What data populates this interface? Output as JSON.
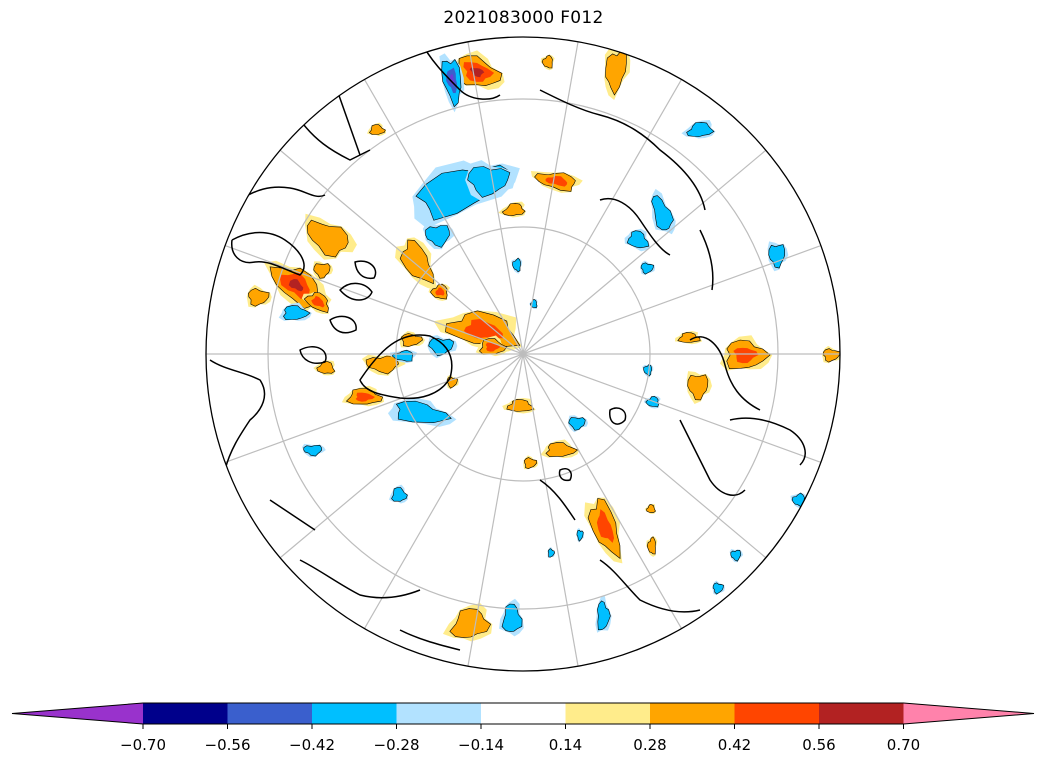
{
  "title": "2021083000 F012",
  "colorbar": {
    "ticks": [
      "−0.70",
      "−0.56",
      "−0.42",
      "−0.28",
      "−0.14",
      "0.14",
      "0.28",
      "0.42",
      "0.56",
      "0.70"
    ],
    "colors": [
      "#9932cc",
      "#00008b",
      "#3a5fcd",
      "#00bfff",
      "#b2e2ff",
      "#ffffff",
      "#ffec8b",
      "#ffa500",
      "#ff4500",
      "#b22222",
      "#ff82ab"
    ],
    "extend": "both"
  },
  "map": {
    "projection": "north-polar-stereographic",
    "gridlines": true,
    "coastlines": true,
    "field_palette": {
      "purple": "#6a3cd6",
      "darkblue": "#3a5fcd",
      "blue": "#00bfff",
      "lightblue": "#b2e2ff",
      "yellow": "#ffec8b",
      "orange": "#ffa500",
      "red": "#ff4500",
      "darkred": "#b22222"
    }
  }
}
